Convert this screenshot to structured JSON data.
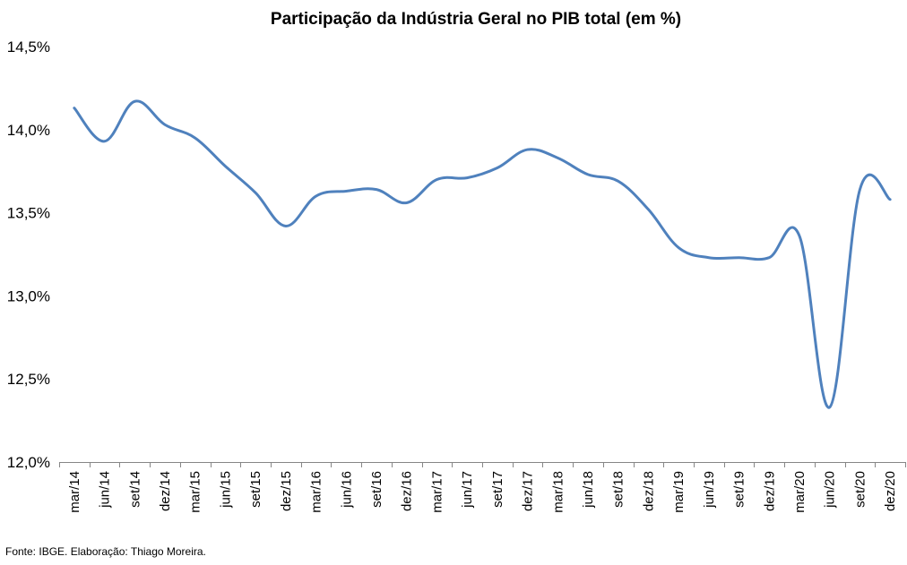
{
  "chart_data": {
    "type": "line",
    "title": "Participação da Indústria Geral no PIB total (em %)",
    "xlabel": "",
    "ylabel": "",
    "ylim": [
      12.0,
      14.5
    ],
    "yticks": [
      "12,0%",
      "12,5%",
      "13,0%",
      "13,5%",
      "14,0%",
      "14,5%"
    ],
    "categories": [
      "mar/14",
      "jun/14",
      "set/14",
      "dez/14",
      "mar/15",
      "jun/15",
      "set/15",
      "dez/15",
      "mar/16",
      "jun/16",
      "set/16",
      "dez/16",
      "mar/17",
      "jun/17",
      "set/17",
      "dez/17",
      "mar/18",
      "jun/18",
      "set/18",
      "dez/18",
      "mar/19",
      "jun/19",
      "set/19",
      "dez/19",
      "mar/20",
      "jun/20",
      "set/20",
      "dez/20"
    ],
    "series": [
      {
        "values": [
          14.13,
          13.93,
          14.17,
          14.03,
          13.95,
          13.78,
          13.62,
          13.42,
          13.6,
          13.63,
          13.64,
          13.56,
          13.7,
          13.71,
          13.77,
          13.88,
          13.83,
          13.73,
          13.69,
          13.52,
          13.29,
          13.23,
          13.23,
          13.23,
          13.36,
          12.33,
          13.64,
          13.58
        ]
      }
    ],
    "grid": false,
    "legend": "none",
    "line_color": "#4F81BD"
  },
  "source_note": "Fonte: IBGE. Elaboração: Thiago Moreira."
}
